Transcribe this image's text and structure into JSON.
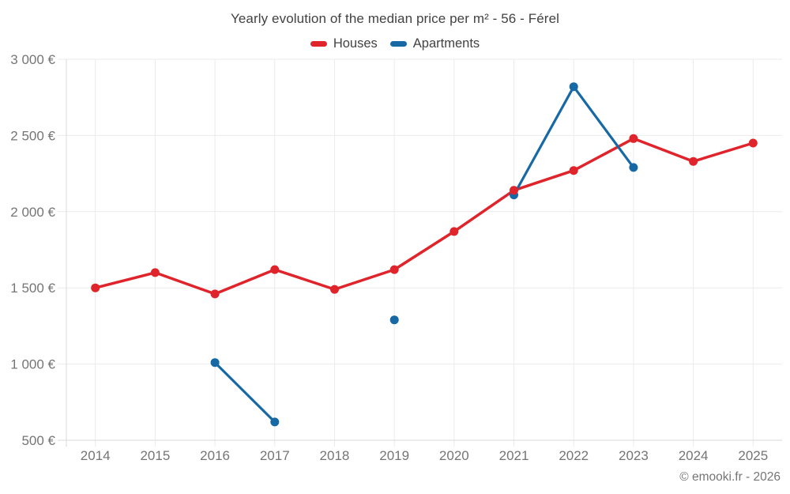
{
  "page": {
    "title": "Yearly evolution of the median price per m² - 56 - Férel",
    "footer": "© emooki.fr - 2026"
  },
  "colors": {
    "houses": "#e0242b",
    "apartments": "#1769a6",
    "gridline": "#ebebeb",
    "axis_line": "#dadada",
    "axis_label_text": "#757575",
    "title_text": "#424242",
    "footer_text": "#757575",
    "background": "#ffffff"
  },
  "chart_data": {
    "type": "line",
    "title": "Yearly evolution of the median price per m² - 56 - Férel",
    "x": [
      2014,
      2015,
      2016,
      2017,
      2018,
      2019,
      2020,
      2021,
      2022,
      2023,
      2024,
      2025
    ],
    "x_labels": [
      "2014",
      "2015",
      "2016",
      "2017",
      "2018",
      "2019",
      "2020",
      "2021",
      "2022",
      "2023",
      "2024",
      "2025"
    ],
    "series": [
      {
        "name": "Houses",
        "color": "#e0242b",
        "values": [
          1500,
          1600,
          1460,
          1620,
          1490,
          1620,
          1870,
          2140,
          2270,
          2480,
          2330,
          2450
        ]
      },
      {
        "name": "Apartments",
        "color": "#1769a6",
        "values": [
          null,
          null,
          1010,
          620,
          null,
          1290,
          null,
          2110,
          2820,
          2290,
          null,
          null
        ]
      }
    ],
    "ylim": [
      500,
      3000
    ],
    "yticks": [
      500,
      1000,
      1500,
      2000,
      2500,
      3000
    ],
    "ytick_labels": [
      "500 €",
      "1 000 €",
      "1 500 €",
      "2 000 €",
      "2 500 €",
      "3 000 €"
    ],
    "y_unit": "€",
    "grid": true,
    "legend_position": "top"
  }
}
